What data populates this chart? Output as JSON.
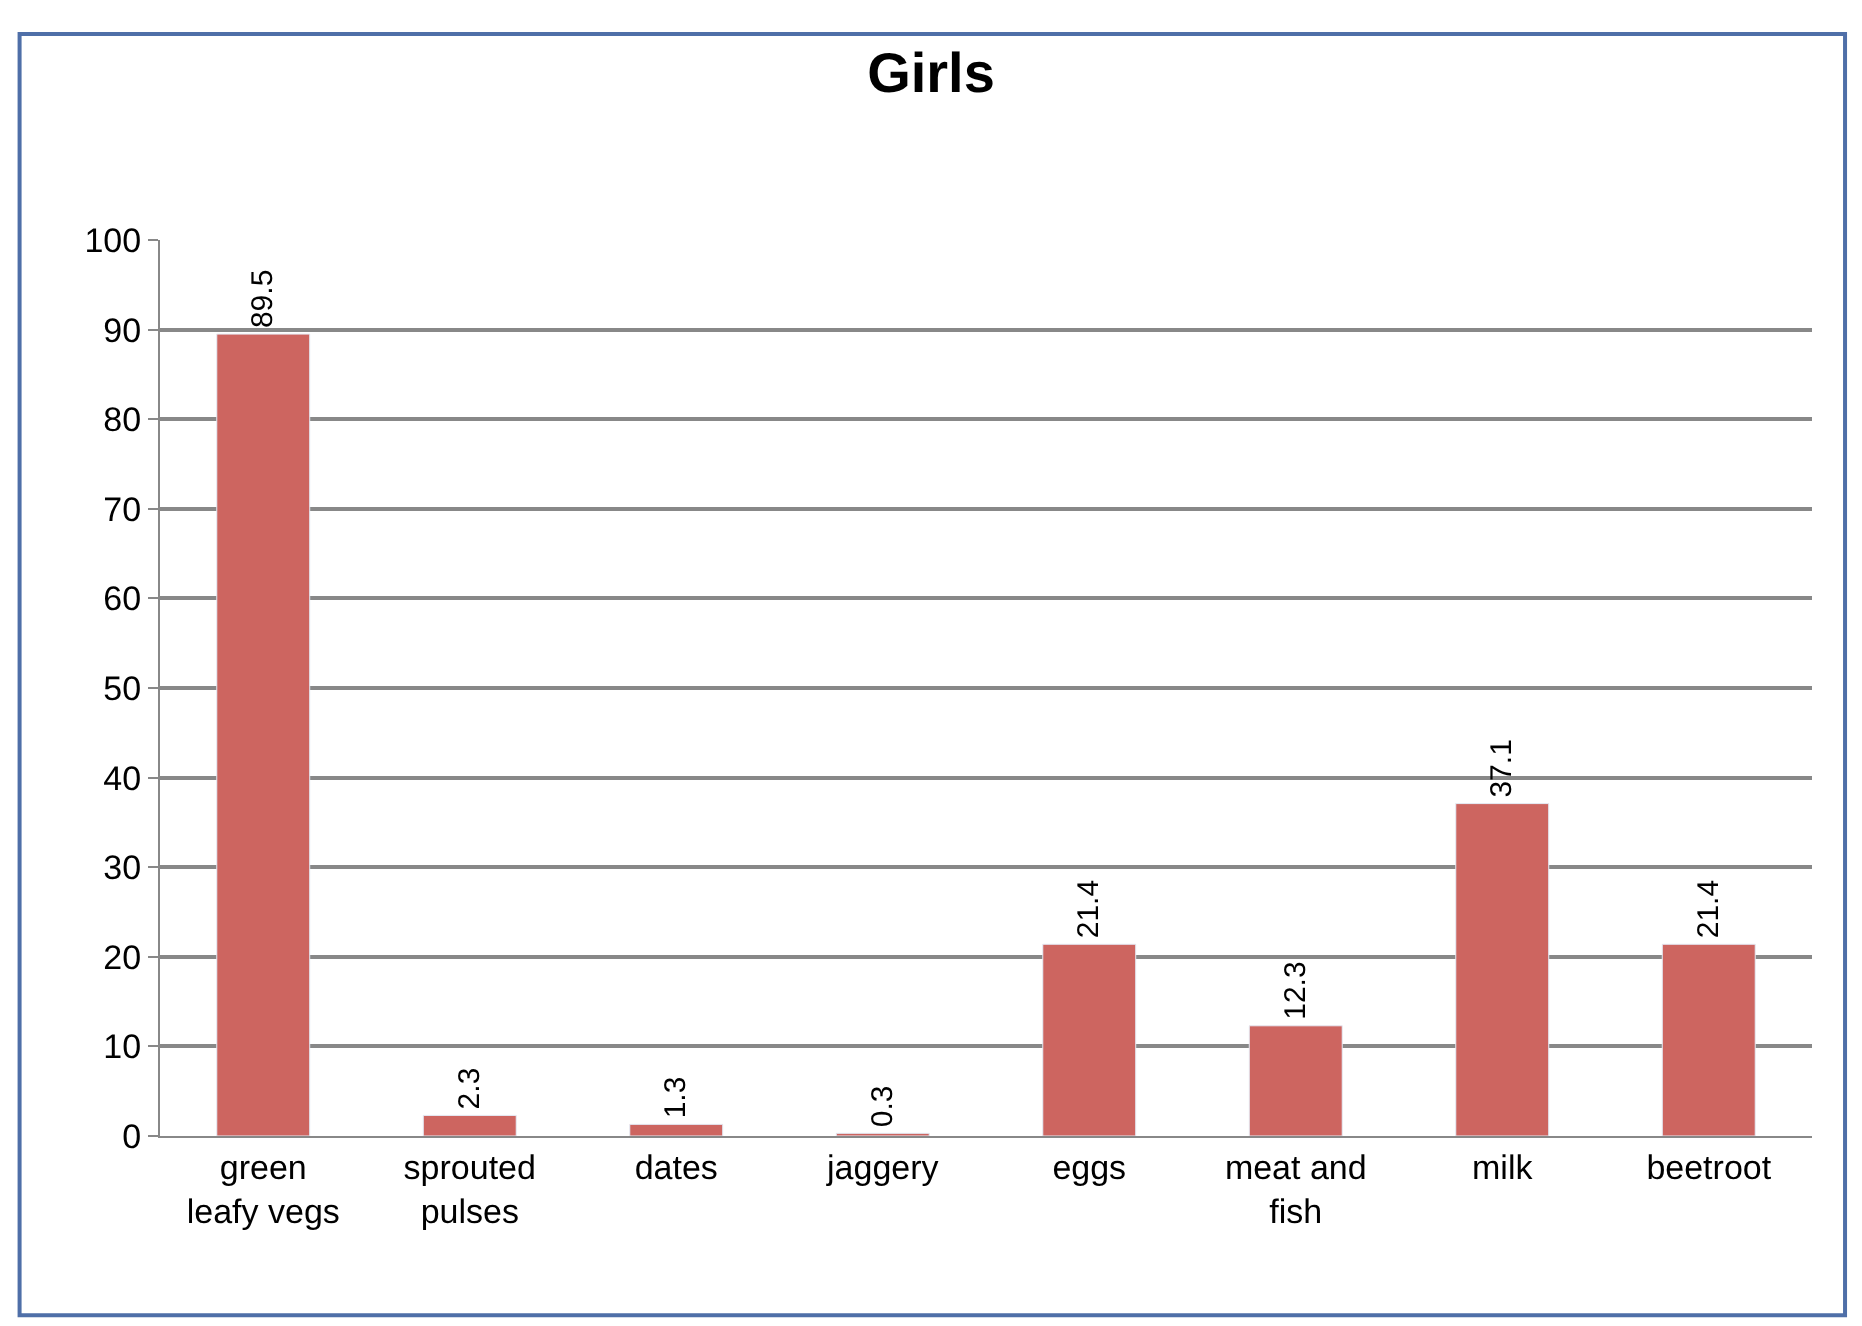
{
  "chart_data": {
    "type": "bar",
    "title": "Girls",
    "categories": [
      "green leafy vegs",
      "sprouted pulses",
      "dates",
      "jaggery",
      "eggs",
      "meat and fish",
      "milk",
      "beetroot"
    ],
    "values": [
      89.5,
      2.3,
      1.3,
      0.3,
      21.4,
      12.3,
      37.1,
      21.4
    ],
    "color": "#cd6560",
    "ylim": [
      0,
      100
    ],
    "yticks": [
      0,
      10,
      20,
      30,
      40,
      50,
      60,
      70,
      80,
      90,
      100
    ],
    "grid": "y",
    "data_labels": true
  }
}
